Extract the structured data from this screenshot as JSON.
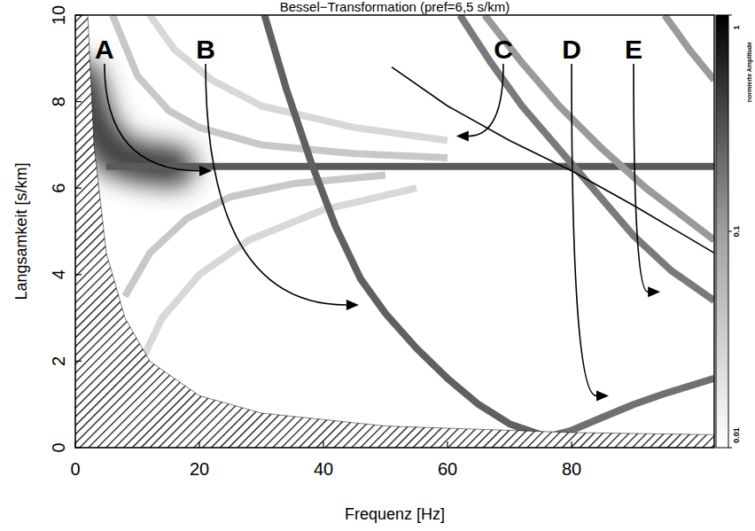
{
  "chart_data": {
    "type": "line",
    "title": "Bessel−Transformation (pref=6,5 s/km)",
    "x_label": "Frequenz  [Hz]",
    "y_label": "Langsamkeit  [s/km]",
    "xlim": [
      0,
      103
    ],
    "ylim": [
      0,
      10
    ],
    "xticks": [
      0,
      20,
      40,
      60,
      80
    ],
    "yticks": [
      0,
      2,
      4,
      6,
      8,
      10
    ],
    "colorbar": {
      "label": "normierte Amplitude",
      "range": [
        0.01,
        1
      ],
      "ticks": [
        0.01,
        0.1,
        1
      ]
    },
    "series": [
      {
        "type": "blur",
        "color": "#3a3a3a",
        "x": [
          1,
          3,
          6,
          10,
          16
        ],
        "values": [
          8.5,
          7.5,
          6.8,
          6.6,
          6.5
        ]
      },
      {
        "type": "band",
        "color": "#5a5a5a",
        "x": [
          5,
          103
        ],
        "values": [
          6.5,
          6.5
        ]
      },
      {
        "type": "band",
        "color": "#c8c8c8",
        "x": [
          6,
          10,
          15,
          20,
          30,
          45,
          60
        ],
        "values": [
          10,
          8.6,
          7.8,
          7.4,
          7.0,
          6.8,
          6.7
        ]
      },
      {
        "type": "band",
        "color": "#d8d8d8",
        "x": [
          12,
          16,
          22,
          30,
          45,
          60
        ],
        "values": [
          10,
          9.2,
          8.5,
          7.9,
          7.4,
          7.1
        ]
      },
      {
        "type": "band",
        "color": "#c8c8c8",
        "x": [
          8,
          12,
          18,
          25,
          35,
          50
        ],
        "values": [
          3.5,
          4.5,
          5.3,
          5.8,
          6.1,
          6.3
        ]
      },
      {
        "type": "band",
        "color": "#d8d8d8",
        "x": [
          10,
          14,
          20,
          28,
          40,
          55
        ],
        "values": [
          1.8,
          3.0,
          4.0,
          4.8,
          5.5,
          6.0
        ]
      },
      {
        "type": "band",
        "color": "#606060",
        "x": [
          30.5,
          34,
          38,
          42,
          46,
          50,
          55,
          60,
          65,
          70,
          75,
          78
        ],
        "values": [
          10,
          8.3,
          6.6,
          5.1,
          3.9,
          3.1,
          2.3,
          1.6,
          1.0,
          0.55,
          0.3,
          0.25
        ]
      },
      {
        "type": "band",
        "color": "#707070",
        "x": [
          76,
          80,
          85,
          90,
          95,
          103
        ],
        "values": [
          0.25,
          0.4,
          0.7,
          1.0,
          1.25,
          1.6
        ]
      },
      {
        "type": "band",
        "color": "#7a7a7a",
        "x": [
          62,
          67,
          72,
          78,
          84,
          90,
          96,
          103
        ],
        "values": [
          10,
          8.9,
          7.9,
          6.9,
          5.9,
          4.9,
          4.1,
          3.4
        ]
      },
      {
        "type": "band",
        "color": "#9a9a9a",
        "x": [
          66,
          72,
          78,
          85,
          92,
          103
        ],
        "values": [
          10,
          8.9,
          7.9,
          6.9,
          6.0,
          4.8
        ]
      },
      {
        "type": "band",
        "color": "#9a9a9a",
        "x": [
          95,
          99,
          103
        ],
        "values": [
          10,
          9.2,
          8.5
        ]
      },
      {
        "type": "line",
        "color": "#000000",
        "x": [
          51,
          60,
          70,
          80,
          90,
          103
        ],
        "values": [
          8.8,
          7.9,
          7.1,
          6.4,
          5.6,
          4.5
        ]
      },
      {
        "type": "area",
        "color": "#000000",
        "x": [
          0,
          2,
          3,
          5,
          8,
          12,
          20,
          30,
          50,
          80,
          103
        ],
        "values": [
          10,
          10,
          7,
          4.5,
          3,
          2,
          1.2,
          0.8,
          0.5,
          0.35,
          0.3
        ]
      }
    ],
    "annotations": [
      {
        "text": "A",
        "x": 4.7,
        "target": [
          22,
          6.4
        ]
      },
      {
        "text": "B",
        "x": 21,
        "target": [
          45.7,
          3.3
        ]
      },
      {
        "text": "C",
        "x": 69,
        "target": [
          61.4,
          7.2
        ]
      },
      {
        "text": "D",
        "x": 80,
        "target": [
          86,
          1.2
        ]
      },
      {
        "text": "E",
        "x": 90,
        "target": [
          94.3,
          3.6
        ]
      }
    ]
  }
}
